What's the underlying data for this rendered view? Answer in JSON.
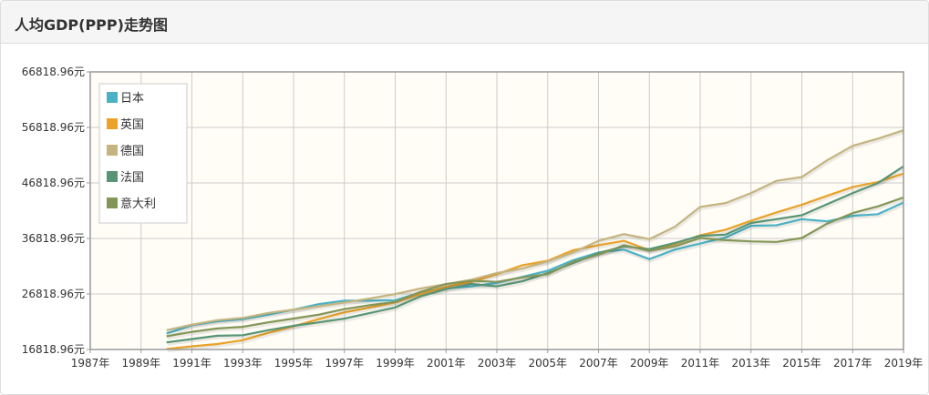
{
  "panel": {
    "title": "人均GDP(PPP)走势图"
  },
  "chart_data": {
    "type": "line",
    "title": "",
    "xlabel": "",
    "ylabel": "",
    "x_min": 1987,
    "x_max": 2019,
    "ylim": [
      16818.96,
      66818.96
    ],
    "x_tick_labels": [
      "1987年",
      "1989年",
      "1991年",
      "1993年",
      "1995年",
      "1997年",
      "1999年",
      "2001年",
      "2003年",
      "2005年",
      "2007年",
      "2009年",
      "2011年",
      "2013年",
      "2015年",
      "2017年",
      "2019年"
    ],
    "y_tick_labels": [
      "16818.96元",
      "26818.96元",
      "36818.96元",
      "46818.96元",
      "56818.96元",
      "66818.96元"
    ],
    "legend_position": "top-left",
    "grid": true,
    "x": [
      1990,
      1991,
      1992,
      1993,
      1994,
      1995,
      1996,
      1997,
      1998,
      1999,
      2000,
      2001,
      2002,
      2003,
      2004,
      2005,
      2006,
      2007,
      2008,
      2009,
      2010,
      2011,
      2012,
      2013,
      2014,
      2015,
      2016,
      2017,
      2018,
      2019
    ],
    "series": [
      {
        "name": "日本",
        "color": "#4bb2c5",
        "values": [
          19700,
          21200,
          21900,
          22300,
          23100,
          24000,
          25000,
          25600,
          25600,
          25700,
          27100,
          27800,
          28200,
          28800,
          29900,
          31000,
          32900,
          34300,
          34800,
          33100,
          34800,
          35900,
          37000,
          39100,
          39200,
          40300,
          39900,
          40900,
          41200,
          43300
        ]
      },
      {
        "name": "英国",
        "color": "#eaa228",
        "values": [
          16900,
          17400,
          17800,
          18500,
          19800,
          21000,
          22300,
          23500,
          24400,
          25300,
          26800,
          28100,
          29000,
          30400,
          32000,
          32800,
          34700,
          35600,
          36400,
          34700,
          35800,
          37400,
          38400,
          40000,
          41500,
          42900,
          44500,
          46100,
          47000,
          48500
        ]
      },
      {
        "name": "德国",
        "color": "#c5b47f",
        "values": [
          20300,
          21300,
          22100,
          22500,
          23400,
          24000,
          24600,
          25300,
          26000,
          26800,
          27800,
          28600,
          29400,
          30600,
          31400,
          32700,
          34300,
          36400,
          37600,
          36700,
          38900,
          42500,
          43200,
          45000,
          47200,
          47900,
          50900,
          53500,
          54800,
          56300
        ]
      },
      {
        "name": "法国",
        "color": "#579575",
        "values": [
          18100,
          18700,
          19300,
          19400,
          20300,
          21100,
          21700,
          22400,
          23400,
          24400,
          26400,
          27700,
          28600,
          28200,
          29100,
          30600,
          32400,
          34200,
          35400,
          34900,
          36000,
          37300,
          37500,
          39600,
          40300,
          41000,
          43000,
          45000,
          46800,
          49800
        ]
      },
      {
        "name": "意大利",
        "color": "#839557",
        "values": [
          19200,
          20000,
          20600,
          20900,
          21700,
          22400,
          23100,
          24100,
          24800,
          25400,
          27200,
          28600,
          29200,
          29000,
          29800,
          30400,
          32600,
          33900,
          35600,
          34600,
          35400,
          36900,
          36500,
          36300,
          36200,
          36900,
          39500,
          41400,
          42600,
          44200
        ]
      }
    ]
  }
}
